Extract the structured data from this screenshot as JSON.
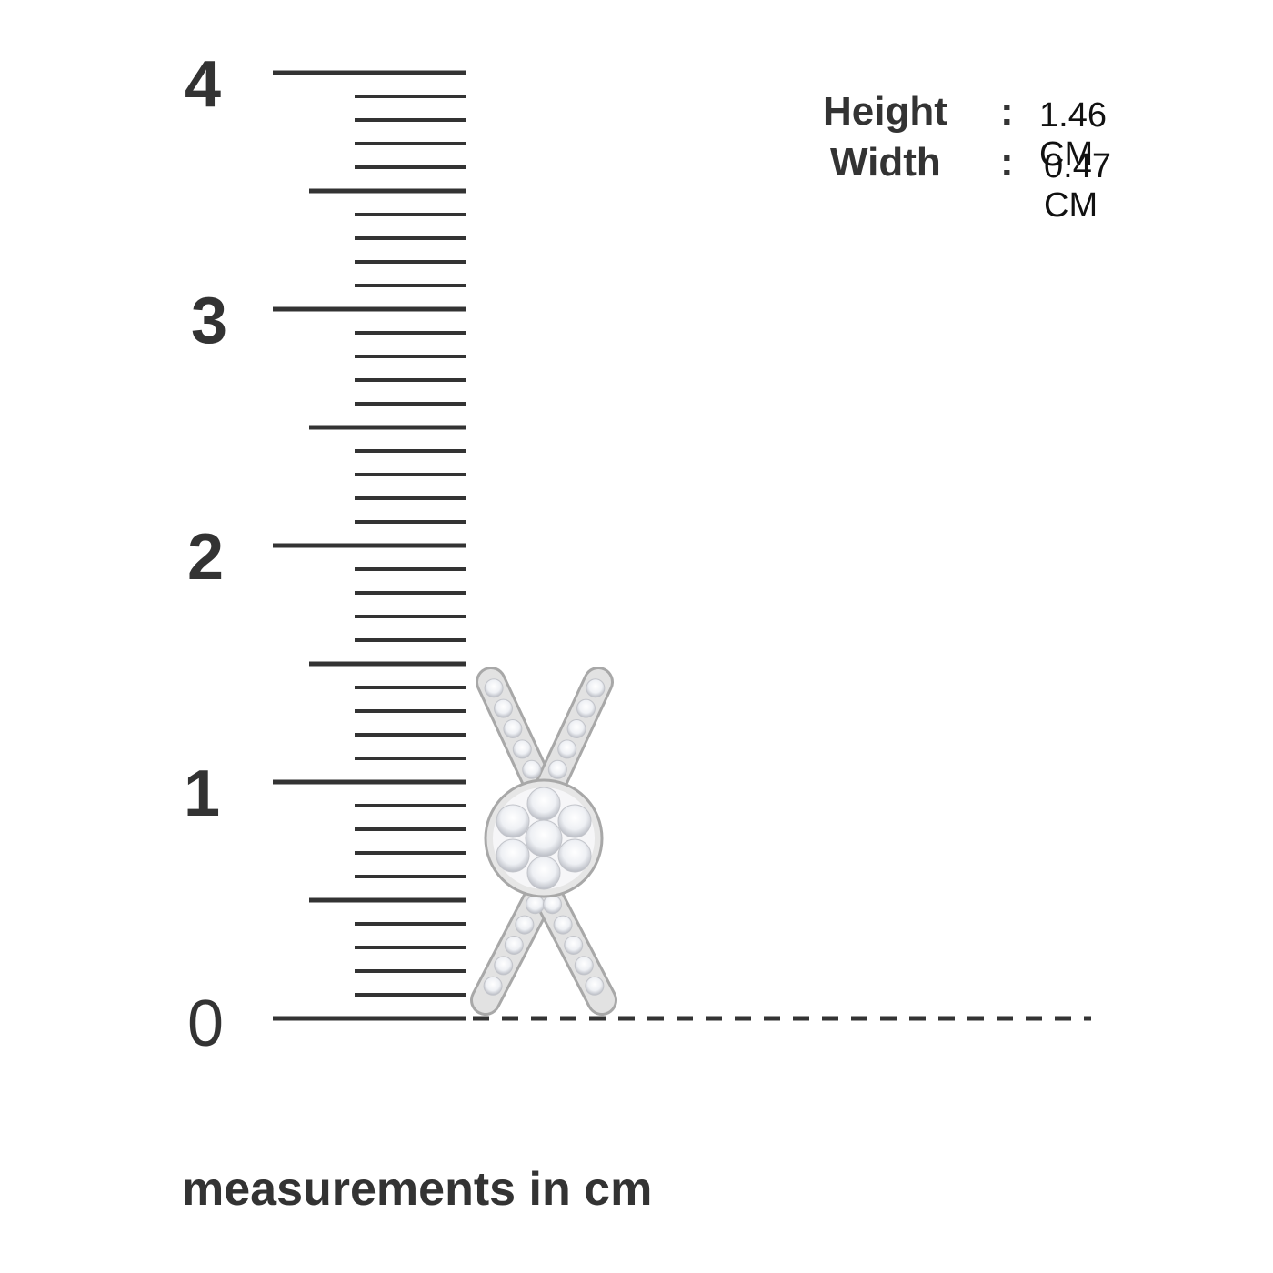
{
  "ruler": {
    "labels": [
      "0",
      "1",
      "2",
      "3",
      "4"
    ]
  },
  "dimensions": {
    "height": {
      "label": "Height",
      "separator": ":",
      "value": "1.46 CM"
    },
    "width": {
      "label": "Width",
      "separator": ":",
      "value": "0.47 CM"
    }
  },
  "caption": "measurements in cm",
  "product": {
    "icon": "diamond-cross-earring-icon",
    "metal_color": "#e2e2e2",
    "outline_color": "#a8a8a8"
  },
  "colors": {
    "ruler": "#333333"
  }
}
